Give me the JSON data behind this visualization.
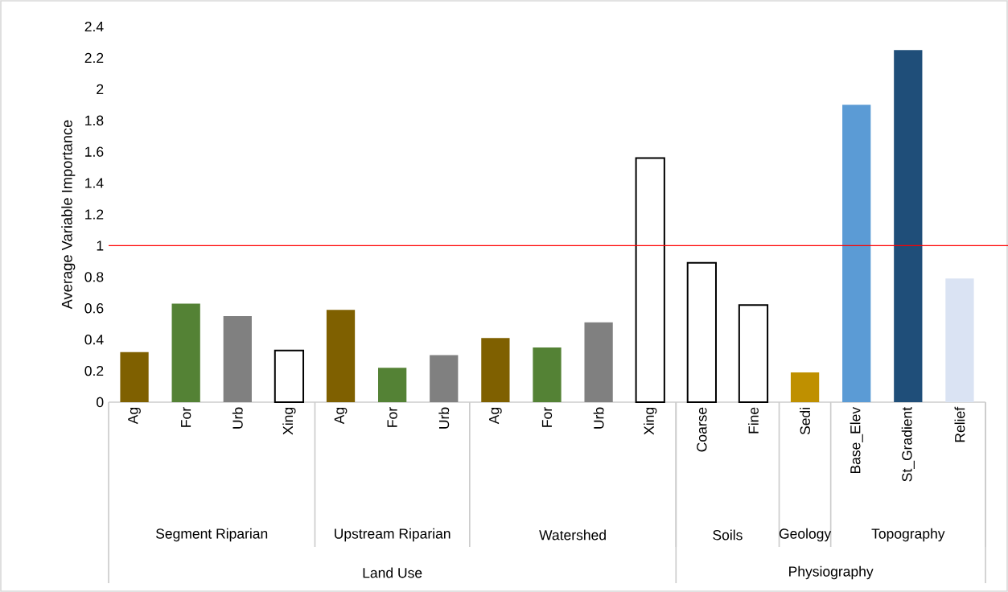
{
  "chart_data": {
    "type": "bar",
    "ylabel": "Average Variable Importance",
    "categories": [
      "Ag",
      "For",
      "Urb",
      "Xing",
      "Ag",
      "For",
      "Urb",
      "Ag",
      "For",
      "Urb",
      "Xing",
      "Coarse",
      "Fine",
      "Sedi",
      "Base_Elev",
      "St_Gradient",
      "Relief"
    ],
    "values": [
      0.32,
      0.63,
      0.55,
      0.33,
      0.59,
      0.22,
      0.3,
      0.41,
      0.35,
      0.51,
      1.56,
      0.89,
      0.62,
      0.19,
      1.9,
      2.25,
      0.79
    ],
    "colors": [
      "#7f6000",
      "#548235",
      "#808080",
      "#000000",
      "#7f6000",
      "#548235",
      "#808080",
      "#7f6000",
      "#548235",
      "#808080",
      "#000000",
      "#000000",
      "#000000",
      "#bf9000",
      "#5b9bd5",
      "#1f4e79",
      "#dae3f3"
    ],
    "ylim": [
      0,
      2.4
    ],
    "yticks": [
      0,
      0.2,
      0.4,
      0.6,
      0.8,
      1,
      1.2,
      1.4,
      1.6,
      1.8,
      2,
      2.2,
      2.4
    ],
    "ref_lines": [
      {
        "axis": "y",
        "value": 1,
        "color": "#ff0000"
      }
    ],
    "annotations": [
      "Segment Riparian",
      "Upstream Riparian",
      "Watershed",
      "Soils",
      "Geology",
      "Topography",
      "Land Use",
      "Physiography"
    ]
  }
}
